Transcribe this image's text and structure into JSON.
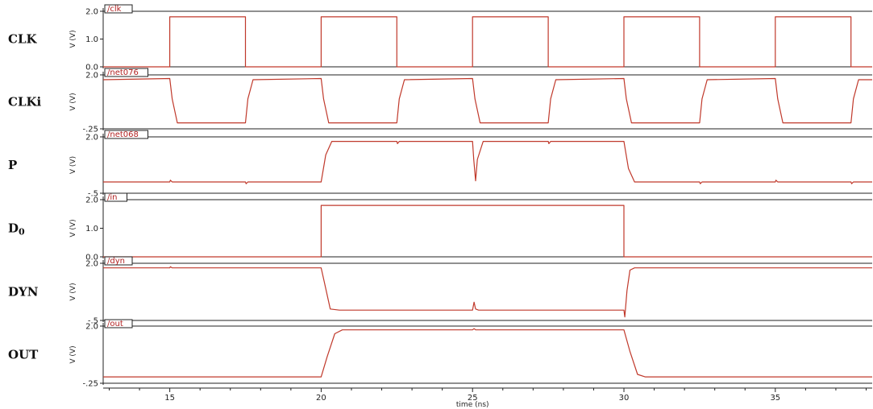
{
  "chart_data": {
    "type": "line",
    "xlabel": "time (ns)",
    "xlim": [
      12.8,
      38.2
    ],
    "xticks": [
      15,
      20,
      25,
      30,
      35
    ],
    "x_tick_labels": [
      "15",
      "20",
      "25",
      "30",
      "35"
    ],
    "trace_color": "#c0392b",
    "panels": [
      {
        "label": "CLK",
        "net": "/clk",
        "ylabel": "V (V)",
        "ylim": [
          0.0,
          2.0
        ],
        "y_tick_labels": [
          "2.0",
          "1.0",
          "0.0"
        ],
        "y_tick_values": [
          2.0,
          1.0,
          0.0
        ],
        "x": [
          12.8,
          15.0,
          15.0,
          17.5,
          17.5,
          20.0,
          20.0,
          22.5,
          22.5,
          25.0,
          25.0,
          27.5,
          27.5,
          30.0,
          30.0,
          32.5,
          32.5,
          35.0,
          35.0,
          37.5,
          37.5,
          38.2
        ],
        "y": [
          0.0,
          0.0,
          1.8,
          1.8,
          0.0,
          0.0,
          1.8,
          1.8,
          0.0,
          0.0,
          1.8,
          1.8,
          0.0,
          0.0,
          1.8,
          1.8,
          0.0,
          0.0,
          1.8,
          1.8,
          0.0,
          0.0
        ]
      },
      {
        "label": "CLKi",
        "net": "/net076",
        "ylabel": "V (V)",
        "ylim": [
          -0.25,
          2.0
        ],
        "y_tick_labels": [
          "2.0",
          "-.25"
        ],
        "y_tick_values": [
          2.0,
          -0.25
        ],
        "x": [
          12.8,
          15.0,
          15.08,
          15.25,
          17.5,
          17.58,
          17.75,
          20.0,
          20.08,
          20.25,
          22.5,
          22.58,
          22.75,
          25.0,
          25.08,
          25.25,
          27.5,
          27.58,
          27.75,
          30.0,
          30.08,
          30.25,
          32.5,
          32.58,
          32.75,
          35.0,
          35.08,
          35.25,
          37.5,
          37.58,
          37.75,
          38.2
        ],
        "y": [
          1.8,
          1.85,
          1.0,
          0.0,
          0.0,
          1.0,
          1.8,
          1.85,
          1.0,
          0.0,
          0.0,
          1.0,
          1.8,
          1.85,
          1.0,
          0.0,
          0.0,
          1.0,
          1.8,
          1.85,
          1.0,
          0.0,
          0.0,
          1.0,
          1.8,
          1.85,
          1.0,
          0.0,
          0.0,
          1.0,
          1.8,
          1.8
        ]
      },
      {
        "label": "P",
        "net": "/net068",
        "ylabel": "V (V)",
        "ylim": [
          -0.5,
          2.0
        ],
        "y_tick_labels": [
          "2.0",
          "-.5"
        ],
        "y_tick_values": [
          2.0,
          -0.5
        ],
        "x": [
          12.8,
          15.0,
          15.02,
          15.08,
          17.5,
          17.52,
          17.58,
          20.0,
          20.15,
          20.35,
          22.5,
          22.52,
          22.58,
          25.0,
          25.04,
          25.1,
          25.16,
          25.35,
          27.5,
          27.52,
          27.58,
          30.0,
          30.15,
          30.35,
          32.5,
          32.52,
          32.58,
          35.0,
          35.02,
          35.08,
          37.5,
          37.52,
          37.58,
          38.2
        ],
        "y": [
          0.0,
          0.0,
          0.08,
          0.0,
          0.0,
          -0.08,
          0.0,
          0.0,
          1.2,
          1.8,
          1.8,
          1.7,
          1.8,
          1.8,
          1.0,
          0.05,
          1.0,
          1.8,
          1.8,
          1.7,
          1.8,
          1.8,
          0.6,
          0.0,
          0.0,
          -0.08,
          0.0,
          0.0,
          0.08,
          0.0,
          0.0,
          -0.08,
          0.0,
          0.0
        ]
      },
      {
        "label": "D0",
        "net": "/in",
        "ylabel": "V (V)",
        "ylim": [
          0.0,
          2.0
        ],
        "y_tick_labels": [
          "2.0",
          "1.0",
          "0.0"
        ],
        "y_tick_values": [
          2.0,
          1.0,
          0.0
        ],
        "x": [
          12.8,
          20.0,
          20.0,
          30.0,
          30.0,
          38.2
        ],
        "y": [
          0.0,
          0.0,
          1.8,
          1.8,
          0.0,
          0.0
        ]
      },
      {
        "label": "DYN",
        "net": "/dyn",
        "ylabel": "V (V)",
        "ylim": [
          -0.5,
          2.0
        ],
        "y_tick_labels": [
          "2.0",
          "-.5"
        ],
        "y_tick_values": [
          2.0,
          -0.5
        ],
        "x": [
          12.8,
          15.0,
          15.02,
          15.08,
          20.0,
          20.1,
          20.3,
          20.6,
          25.0,
          25.05,
          25.1,
          25.2,
          30.0,
          30.03,
          30.1,
          30.2,
          30.35,
          38.2
        ],
        "y": [
          1.8,
          1.8,
          1.85,
          1.8,
          1.8,
          1.2,
          0.0,
          -0.05,
          -0.05,
          0.3,
          0.0,
          -0.05,
          -0.05,
          -0.35,
          0.8,
          1.7,
          1.8,
          1.8
        ]
      },
      {
        "label": "OUT",
        "net": "/out",
        "ylabel": "V (V)",
        "ylim": [
          -0.25,
          2.0
        ],
        "y_tick_labels": [
          "2.0",
          "-.25"
        ],
        "y_tick_values": [
          2.0,
          -0.25
        ],
        "x": [
          12.8,
          20.0,
          20.2,
          20.45,
          20.7,
          25.0,
          25.05,
          25.1,
          30.0,
          30.2,
          30.45,
          30.7,
          38.2
        ],
        "y": [
          0.0,
          0.0,
          0.8,
          1.7,
          1.85,
          1.85,
          1.9,
          1.85,
          1.85,
          1.0,
          0.1,
          0.0,
          0.0
        ]
      }
    ]
  }
}
